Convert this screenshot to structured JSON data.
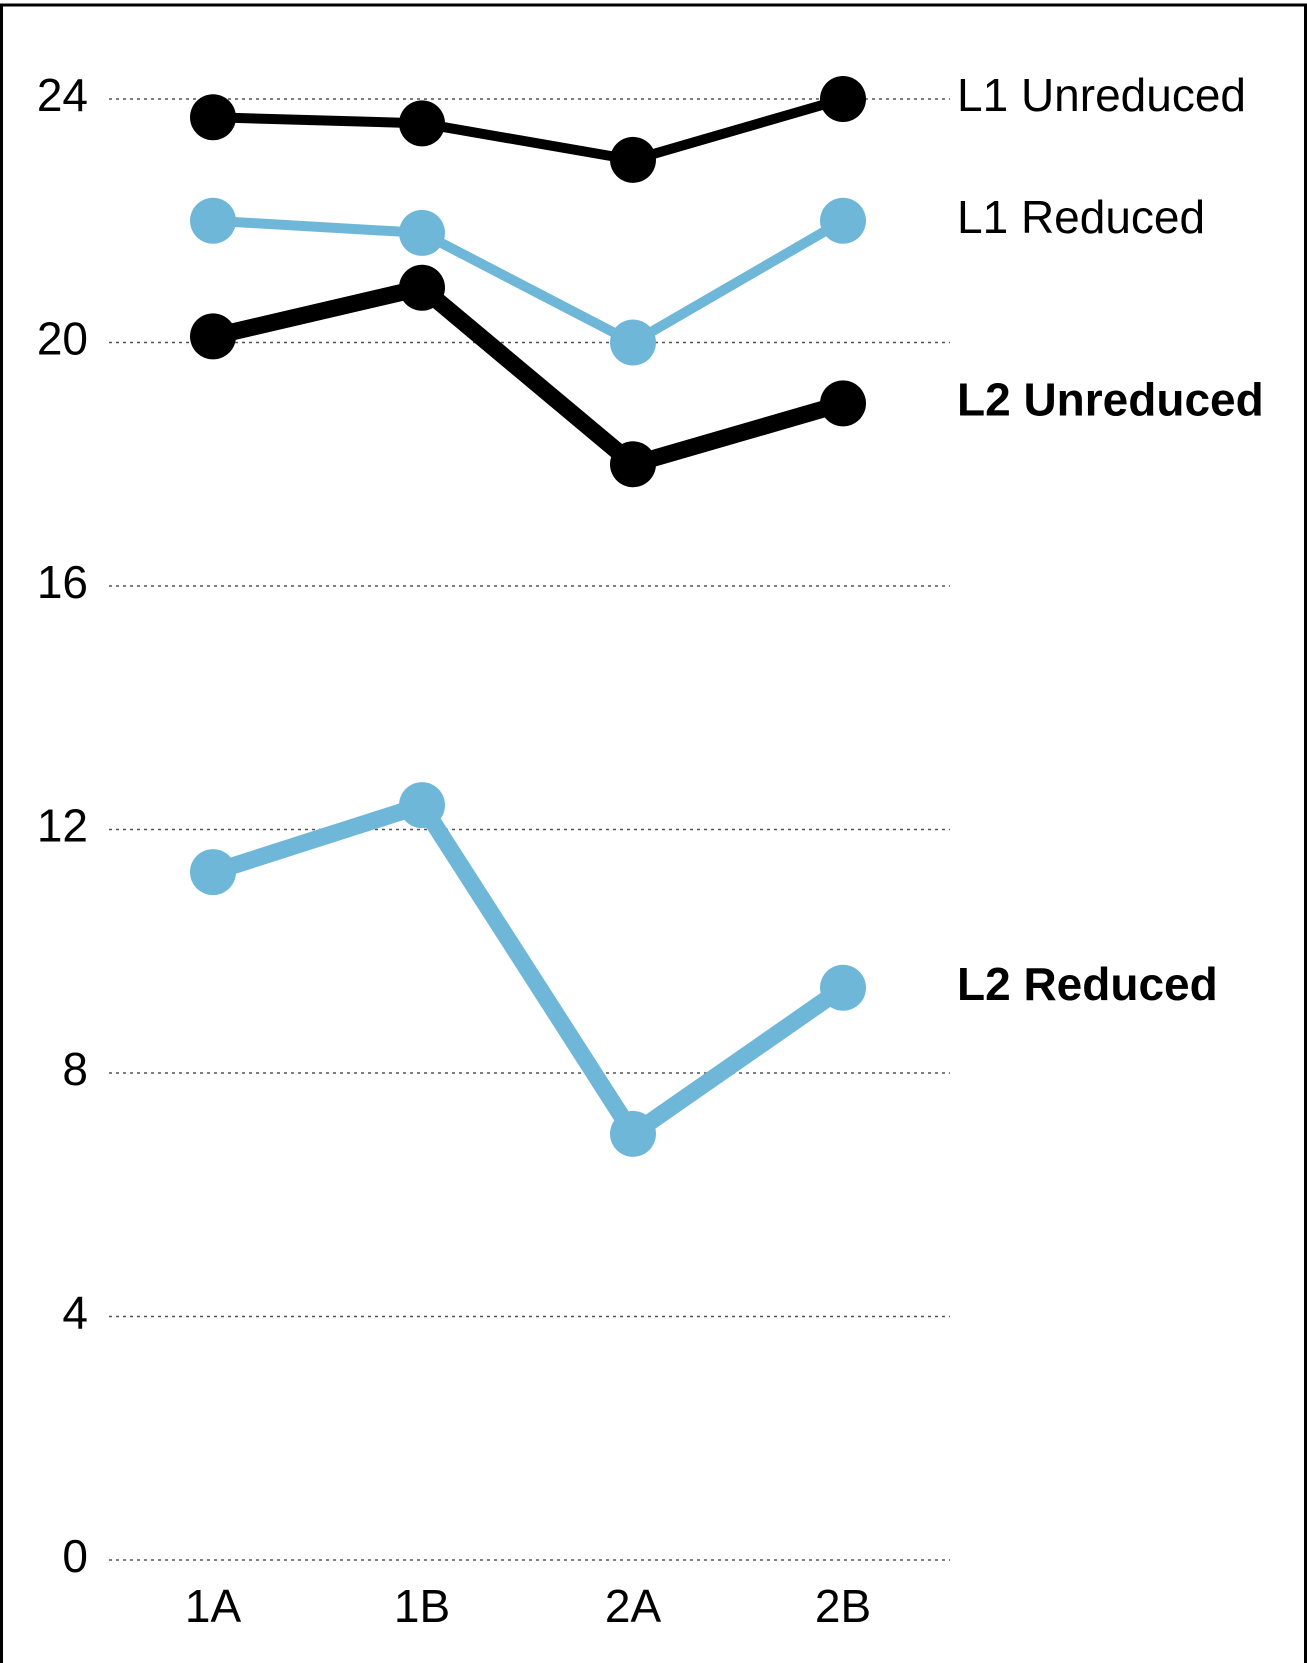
{
  "chart_data": {
    "type": "line",
    "categories": [
      "1A",
      "1B",
      "2A",
      "2B"
    ],
    "series": [
      {
        "name": "L1 Unreduced",
        "color": "#000000",
        "values": [
          23.7,
          23.6,
          23.0,
          24.0
        ]
      },
      {
        "name": "L1 Reduced",
        "color": "#6fb7d9",
        "values": [
          22.0,
          21.8,
          20.0,
          22.0
        ]
      },
      {
        "name": "L2 Unreduced",
        "color": "#000000",
        "values": [
          20.1,
          20.9,
          18.0,
          19.0
        ]
      },
      {
        "name": "L2 Reduced",
        "color": "#6fb7d9",
        "values": [
          11.3,
          12.4,
          7.0,
          9.4
        ]
      }
    ],
    "ylim": [
      0,
      24
    ],
    "yticks": [
      0,
      4,
      8,
      12,
      16,
      20,
      24
    ],
    "grid": true
  }
}
